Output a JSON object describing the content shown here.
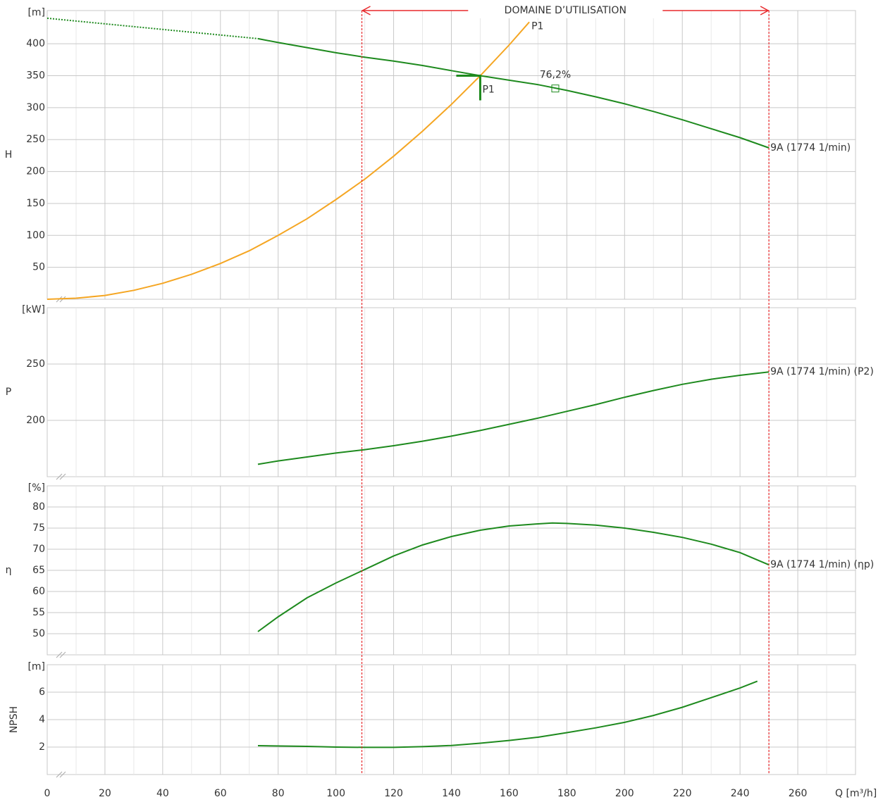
{
  "chart_data": {
    "type": "line",
    "xlabel": "Q [m³/h]",
    "xlim": [
      0,
      280
    ],
    "xticks": [
      0,
      20,
      40,
      60,
      80,
      100,
      120,
      140,
      160,
      180,
      200,
      220,
      240,
      260
    ],
    "xminor": [
      10,
      30,
      50,
      70,
      90,
      110,
      130,
      150,
      170,
      190,
      210,
      230,
      250,
      270
    ],
    "range": {
      "label": "DOMAINE D’UTILISATION",
      "x": [
        109,
        250
      ],
      "color": "#e8282b"
    },
    "panels": [
      {
        "ylabel": "H",
        "unit": "[m]",
        "ylim": [
          0,
          452
        ],
        "yticks": [
          50,
          100,
          150,
          200,
          250,
          300,
          350,
          400
        ],
        "series": [
          {
            "name": "9A (1774 1/min)",
            "color": "#1e8a1e",
            "x": [
              73,
              80,
              90,
              100,
              110,
              120,
              130,
              140,
              150,
              160,
              170,
              180,
              190,
              200,
              210,
              220,
              230,
              240,
              250
            ],
            "values": [
              408,
              402,
              394,
              386,
              379,
              373,
              366,
              358,
              350,
              343,
              336,
              327,
              317,
              306,
              294,
              281,
              267,
              253,
              237
            ],
            "extrapolated": {
              "x": [
                0,
                73
              ],
              "values": [
                440,
                408
              ]
            }
          },
          {
            "name": "P1",
            "color": "#f5a623",
            "x": [
              0,
              10,
              20,
              30,
              40,
              50,
              60,
              70,
              80,
              90,
              100,
              110,
              120,
              130,
              140,
              150,
              160,
              167
            ],
            "values": [
              0,
              1.6,
              6,
              14,
              25,
              39,
              56,
              76,
              100,
              126,
              156,
              188,
              224,
              263,
              305,
              350,
              398,
              434
            ]
          }
        ],
        "point": {
          "label": "P1",
          "x": 150,
          "y": 350,
          "color": "#1e8a1e"
        },
        "annotation": {
          "label": "76,2%",
          "value": 76.2,
          "x": 176,
          "y": 330,
          "color": "#1e8a1e"
        }
      },
      {
        "ylabel": "P",
        "unit": "[kW]",
        "ylim": [
          150,
          300
        ],
        "yticks": [
          200,
          250
        ],
        "series": [
          {
            "name": "9A (1774 1/min) (P2)",
            "color": "#1e8a1e",
            "x": [
              73,
              80,
              90,
              100,
              110,
              120,
              130,
              140,
              150,
              160,
              170,
              180,
              190,
              200,
              210,
              220,
              230,
              240,
              250
            ],
            "values": [
              161,
              164,
              167.5,
              171,
              174,
              177.5,
              181.5,
              186,
              191,
              196.5,
              202,
              208,
              214,
              220.5,
              226.5,
              232,
              236.5,
              240,
              243
            ]
          }
        ]
      },
      {
        "ylabel": "η",
        "unit": "[%]",
        "ylim": [
          45,
          85
        ],
        "yticks": [
          50,
          55,
          60,
          65,
          70,
          75,
          80
        ],
        "series": [
          {
            "name": "9A (1774 1/min) (ηp)",
            "color": "#1e8a1e",
            "x": [
              73,
              80,
              90,
              100,
              110,
              120,
              130,
              140,
              150,
              160,
              170,
              175,
              180,
              190,
              200,
              210,
              220,
              230,
              240,
              250
            ],
            "values": [
              50.5,
              54,
              58.5,
              62,
              65.2,
              68.4,
              71,
              73,
              74.5,
              75.5,
              76,
              76.2,
              76.1,
              75.7,
              75,
              74,
              72.8,
              71.2,
              69.2,
              66.3
            ]
          }
        ]
      },
      {
        "ylabel": "NPSH",
        "unit": "[m]",
        "ylim": [
          0,
          8
        ],
        "yticks": [
          2,
          4,
          6
        ],
        "series": [
          {
            "color": "#1e8a1e",
            "x": [
              73,
              90,
              100,
              110,
              120,
              130,
              140,
              150,
              160,
              170,
              180,
              190,
              200,
              210,
              220,
              230,
              240,
              246
            ],
            "values": [
              2.1,
              2.05,
              2.0,
              1.98,
              1.98,
              2.03,
              2.12,
              2.28,
              2.48,
              2.72,
              3.05,
              3.4,
              3.8,
              4.3,
              4.9,
              5.6,
              6.3,
              6.8
            ]
          }
        ]
      }
    ]
  }
}
